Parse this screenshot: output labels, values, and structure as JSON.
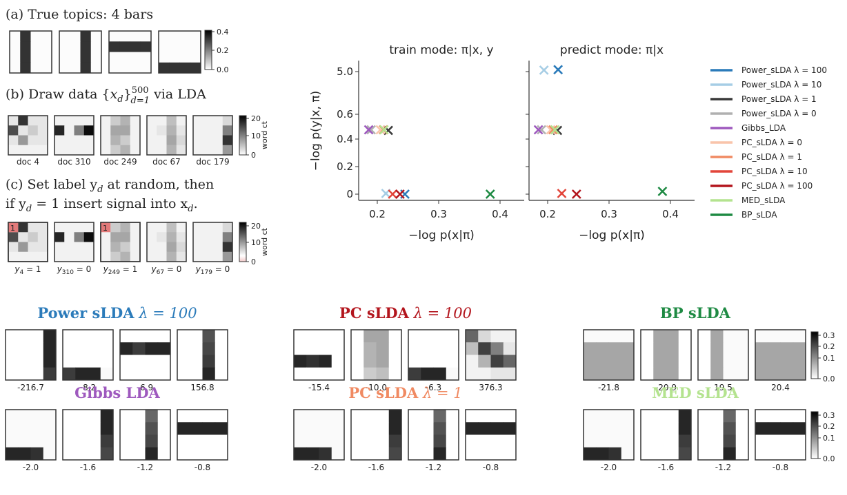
{
  "panel_a": {
    "title": "(a) True topics: 4 bars",
    "colorbar_ticks": [
      "0.4",
      "0.2",
      "0.0"
    ]
  },
  "panel_b": {
    "title_prefix": "(b) Draw data {",
    "title_var": "x",
    "title_sub": "d",
    "title_brace": "}",
    "title_sup": "500",
    "title_lower": "d=1",
    "title_suffix": " via LDA",
    "doc_labels": [
      "doc 4",
      "doc 310",
      "doc 249",
      "doc 67",
      "doc 179"
    ],
    "colorbar_ticks": [
      "20",
      "10",
      "0"
    ],
    "colorbar_label": "word ct"
  },
  "panel_c": {
    "title_line1": "(c) Set label y",
    "title_line1_sub": "d",
    "title_line1_end": " at random, then",
    "title_line2": "if y",
    "title_line2_sub": "d",
    "title_line2_mid": " = 1 insert signal into x",
    "title_line2_end_sub": "d",
    "title_line2_end": ".",
    "labels": [
      {
        "var": "y",
        "sub": "4",
        "val": " = 1"
      },
      {
        "var": "y",
        "sub": "310",
        "val": " = 0"
      },
      {
        "var": "y",
        "sub": "249",
        "val": " = 1"
      },
      {
        "var": "y",
        "sub": "67",
        "val": " = 0"
      },
      {
        "var": "y",
        "sub": "179",
        "val": " = 0"
      }
    ],
    "signal_marker": "1",
    "colorbar_ticks": [
      "20",
      "10",
      "0"
    ],
    "colorbar_label": "word ct"
  },
  "chart_data": [
    {
      "type": "scatter",
      "title": "train mode: π|x, y",
      "xlabel": "−log p(x|π)",
      "ylabel": "−log p(y|x, π)",
      "x_ticks": [
        "0.2",
        "0.3",
        "0.4"
      ],
      "y_ticks": [
        "5.0",
        "0.6",
        "0.4",
        "0.2",
        "0"
      ],
      "marker": "×",
      "series": [
        {
          "name": "Power_sLDA λ = 100",
          "color": "#2b7bba",
          "x": 0.245,
          "y": 0.0
        },
        {
          "name": "Power_sLDA λ = 10",
          "color": "#a6cde5",
          "x": 0.214,
          "y": 0.005
        },
        {
          "name": "Power_sLDA λ = 1",
          "color": "#3a3a3a",
          "x": 0.218,
          "y": 0.47
        },
        {
          "name": "Power_sLDA λ = 0",
          "color": "#b0b0b0",
          "x": 0.19,
          "y": 0.475
        },
        {
          "name": "Gibbs_LDA",
          "color": "#9e59be",
          "x": 0.186,
          "y": 0.475
        },
        {
          "name": "PC_sLDA λ = 0",
          "color": "#f9c4aa",
          "x": 0.205,
          "y": 0.475
        },
        {
          "name": "PC_sLDA λ = 1",
          "color": "#f08a62",
          "x": 0.21,
          "y": 0.475
        },
        {
          "name": "PC_sLDA λ = 10",
          "color": "#e2453a",
          "x": 0.225,
          "y": 0.0
        },
        {
          "name": "PC_sLDA λ = 100",
          "color": "#b3151d",
          "x": 0.237,
          "y": 0.0
        },
        {
          "name": "MED_sLDA",
          "color": "#b4e38f",
          "x": 0.211,
          "y": 0.475
        },
        {
          "name": "BP_sLDA",
          "color": "#1e8a43",
          "x": 0.384,
          "y": 0.0
        }
      ]
    },
    {
      "type": "scatter",
      "title": "predict mode: π|x",
      "xlabel": "−log p(x|π)",
      "ylabel": "",
      "x_ticks": [
        "0.2",
        "0.3",
        "0.4"
      ],
      "marker": "×",
      "series": [
        {
          "name": "Power_sLDA λ = 100",
          "color": "#2b7bba",
          "x": 0.217,
          "y": 5.2
        },
        {
          "name": "Power_sLDA λ = 10",
          "color": "#a6cde5",
          "x": 0.194,
          "y": 5.15
        },
        {
          "name": "Power_sLDA λ = 1",
          "color": "#3a3a3a",
          "x": 0.216,
          "y": 0.47
        },
        {
          "name": "Power_sLDA λ = 0",
          "color": "#b0b0b0",
          "x": 0.19,
          "y": 0.475
        },
        {
          "name": "Gibbs_LDA",
          "color": "#9e59be",
          "x": 0.185,
          "y": 0.475
        },
        {
          "name": "PC_sLDA λ = 0",
          "color": "#f9c4aa",
          "x": 0.205,
          "y": 0.475
        },
        {
          "name": "PC_sLDA λ = 1",
          "color": "#f08a62",
          "x": 0.209,
          "y": 0.475
        },
        {
          "name": "PC_sLDA λ = 10",
          "color": "#e2453a",
          "x": 0.223,
          "y": 0.005
        },
        {
          "name": "PC_sLDA λ = 100",
          "color": "#b3151d",
          "x": 0.247,
          "y": 0.0
        },
        {
          "name": "MED_sLDA",
          "color": "#b4e38f",
          "x": 0.212,
          "y": 0.475
        },
        {
          "name": "BP_sLDA",
          "color": "#1e8a43",
          "x": 0.387,
          "y": 0.02
        }
      ]
    }
  ],
  "legend": [
    {
      "label": "Power_sLDA λ = 100",
      "color": "#2b7bba"
    },
    {
      "label": "Power_sLDA λ = 10",
      "color": "#a6cde5"
    },
    {
      "label": "Power_sLDA λ = 1",
      "color": "#3a3a3a"
    },
    {
      "label": "Power_sLDA λ = 0",
      "color": "#b0b0b0"
    },
    {
      "label": "Gibbs_LDA",
      "color": "#9e59be"
    },
    {
      "label": "PC_sLDA λ = 0",
      "color": "#f9c4aa"
    },
    {
      "label": "PC_sLDA λ = 1",
      "color": "#f08a62"
    },
    {
      "label": "PC_sLDA λ = 10",
      "color": "#e2453a"
    },
    {
      "label": "PC_sLDA λ = 100",
      "color": "#b3151d"
    },
    {
      "label": "MED_sLDA",
      "color": "#b4e38f"
    },
    {
      "label": "BP_sLDA",
      "color": "#1e8a43"
    }
  ],
  "methods": [
    {
      "name": "Power sLDA",
      "suffix": "λ = 100",
      "color": "#2b7bba",
      "weights": [
        "-216.7",
        "-8.2",
        "-6.9",
        "156.8"
      ]
    },
    {
      "name": "PC sLDA",
      "suffix": "λ = 100",
      "color": "#b3151d",
      "weights": [
        "-15.4",
        "-10.0",
        "-6.3",
        "376.3"
      ]
    },
    {
      "name": "BP sLDA",
      "suffix": "",
      "color": "#1e8a43",
      "weights": [
        "-21.8",
        "-20.9",
        "19.5",
        "20.4"
      ]
    },
    {
      "name": "Gibbs LDA",
      "suffix": "",
      "color": "#9e59be",
      "weights": [
        "-2.0",
        "-1.6",
        "-1.2",
        "-0.8"
      ]
    },
    {
      "name": "PC sLDA",
      "suffix": "λ = 1",
      "color": "#f08a62",
      "weights": [
        "-2.0",
        "-1.6",
        "-1.2",
        "-0.8"
      ]
    },
    {
      "name": "MED sLDA",
      "suffix": "",
      "color": "#b4e38f",
      "weights": [
        "-2.0",
        "-1.6",
        "-1.2",
        "-0.8"
      ]
    }
  ],
  "topic_colorbar_ticks": [
    "0.3",
    "0.2",
    "0.1",
    "0.0"
  ]
}
